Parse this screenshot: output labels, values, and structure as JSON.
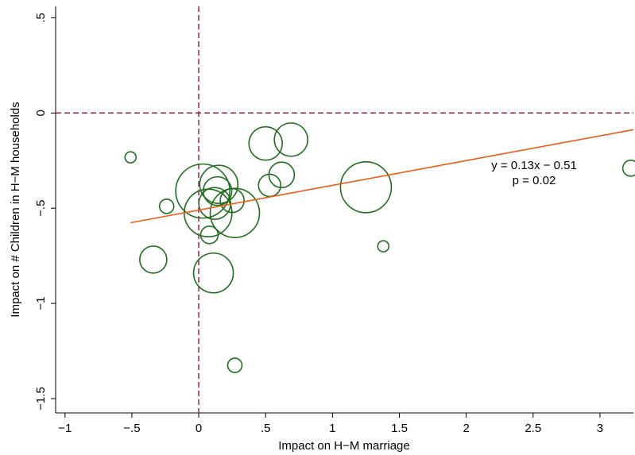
{
  "chart_data": {
    "type": "bubble",
    "x_label": "Impact on H−M marriage",
    "y_label": "Impact on # Children in H−M households",
    "x": [
      -0.51,
      -0.24,
      -0.34,
      0.03,
      0.15,
      0.14,
      0.07,
      0.27,
      0.12,
      0.25,
      0.08,
      0.11,
      0.27,
      0.5,
      0.69,
      0.62,
      0.53,
      1.25,
      1.38,
      3.23
    ],
    "values": [
      -0.233,
      -0.49,
      -0.77,
      -0.41,
      -0.375,
      -0.41,
      -0.525,
      -0.525,
      -0.475,
      -0.46,
      -0.64,
      -0.84,
      -1.325,
      -0.16,
      -0.14,
      -0.325,
      -0.38,
      -0.39,
      -0.7,
      -0.29
    ],
    "sizes": [
      4.9,
      8.1,
      28.9,
      115.6,
      57.6,
      32.4,
      90,
      96.1,
      40,
      22.5,
      12.1,
      62.5,
      8.1,
      44.1,
      44.1,
      25.6,
      19.6,
      102.4,
      4.9,
      10
    ],
    "color": "#1f6e1f",
    "fit": {
      "slope": 0.13,
      "intercept": -0.51,
      "x": [
        -0.51,
        3.25
      ],
      "color": "#f05a14"
    },
    "ref_lines": {
      "x": 0,
      "y": 0,
      "color": "#a3204f"
    },
    "annotations": [
      "y = 0.13x − 0.51",
      "p = 0.02"
    ],
    "xlim": [
      -1.07,
      3.25
    ],
    "ylim": [
      -1.575,
      0.56
    ],
    "xticks": [
      {
        "value": -1,
        "label": "−1"
      },
      {
        "value": -0.5,
        "label": "−.5"
      },
      0,
      {
        "value": 0.5,
        "label": ".5"
      },
      1,
      1.5,
      2,
      2.5,
      3
    ],
    "yticks": [
      {
        "value": -1.5,
        "label": "−1.5"
      },
      {
        "value": -1,
        "label": "−1"
      },
      {
        "value": -0.5,
        "label": "−.5"
      },
      0,
      {
        "value": 0.5,
        "label": ".5"
      }
    ]
  }
}
